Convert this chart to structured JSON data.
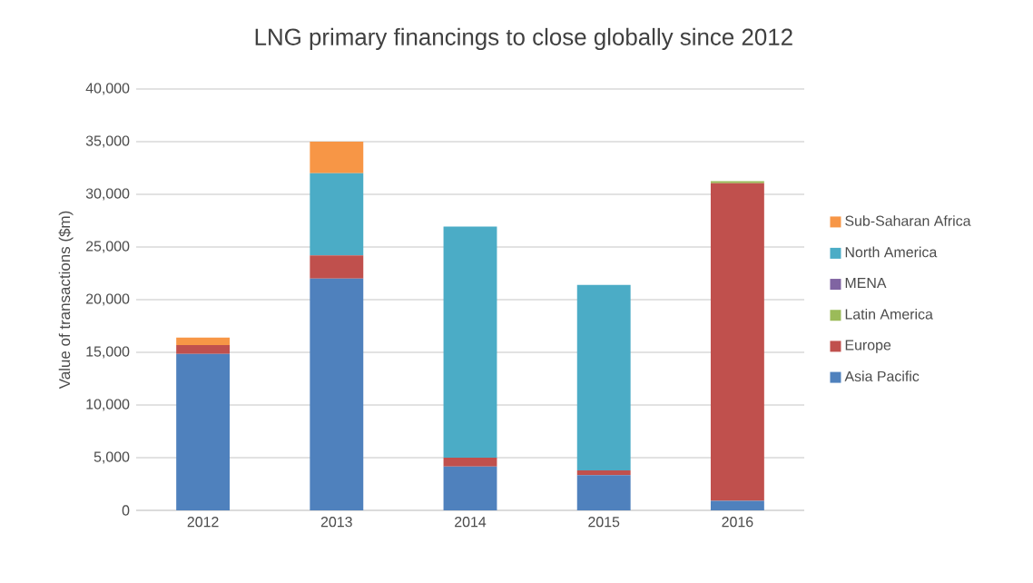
{
  "chart_data": {
    "type": "bar",
    "stacked": true,
    "title": "LNG primary financings to close globally since 2012",
    "ylabel": "Value of transactions ($m)",
    "categories": [
      "2012",
      "2013",
      "2014",
      "2015",
      "2016"
    ],
    "series": [
      {
        "name": "Asia Pacific",
        "color": "#4f81bd",
        "values": [
          14850,
          22000,
          4150,
          3350,
          900
        ]
      },
      {
        "name": "Europe",
        "color": "#c0504d",
        "values": [
          850,
          2200,
          850,
          450,
          30150
        ]
      },
      {
        "name": "Latin America",
        "color": "#9bbb59",
        "values": [
          0,
          0,
          0,
          0,
          200
        ]
      },
      {
        "name": "MENA",
        "color": "#8064a2",
        "values": [
          0,
          0,
          0,
          0,
          0
        ]
      },
      {
        "name": "North America",
        "color": "#4bacc6",
        "values": [
          0,
          7800,
          21950,
          17600,
          0
        ]
      },
      {
        "name": "Sub-Saharan Africa",
        "color": "#f79646",
        "values": [
          700,
          3000,
          0,
          0,
          0
        ]
      }
    ],
    "ylim": [
      0,
      40000
    ],
    "yticks": [
      0,
      {
        "value": 5000,
        "label": "5,000"
      },
      {
        "value": 10000,
        "label": "10,000"
      },
      {
        "value": 15000,
        "label": "15,000"
      },
      {
        "value": 20000,
        "label": "20,000"
      },
      {
        "value": 25000,
        "label": "25,000"
      },
      {
        "value": 30000,
        "label": "30,000"
      },
      {
        "value": 35000,
        "label": "35,000"
      },
      {
        "value": 40000,
        "label": "40,000"
      }
    ],
    "grid": "y",
    "legend": "right"
  }
}
